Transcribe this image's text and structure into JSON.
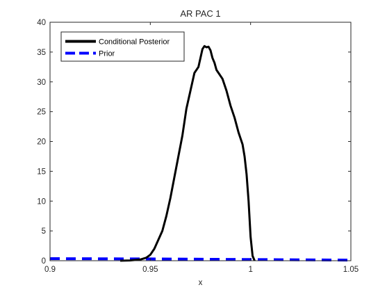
{
  "chart_data": {
    "type": "line",
    "title": "AR PAC 1",
    "xlabel": "x",
    "ylabel": "",
    "xlim": [
      0.9,
      1.05
    ],
    "ylim": [
      0,
      40
    ],
    "x_ticks": [
      0.9,
      0.95,
      1,
      1.05
    ],
    "x_tick_labels": [
      "0.9",
      "0.95",
      "1",
      "1.05"
    ],
    "y_ticks": [
      0,
      5,
      10,
      15,
      20,
      25,
      30,
      35,
      40
    ],
    "y_tick_labels": [
      "0",
      "5",
      "10",
      "15",
      "20",
      "25",
      "30",
      "35",
      "40"
    ],
    "grid": false,
    "legend_position": "top-left",
    "series": [
      {
        "name": "Conditional Posterior",
        "color": "#000000",
        "style": "solid",
        "x": [
          0.935,
          0.94,
          0.945,
          0.948,
          0.95,
          0.952,
          0.954,
          0.956,
          0.958,
          0.96,
          0.962,
          0.964,
          0.966,
          0.968,
          0.97,
          0.972,
          0.974,
          0.975,
          0.976,
          0.977,
          0.978,
          0.979,
          0.98,
          0.981,
          0.982,
          0.983,
          0.984,
          0.986,
          0.988,
          0.99,
          0.992,
          0.994,
          0.996,
          0.997,
          0.998,
          0.999,
          1.0,
          1.001,
          1.002
        ],
        "y": [
          0.0,
          0.05,
          0.2,
          0.5,
          1.0,
          2.0,
          3.5,
          5.0,
          7.5,
          10.5,
          14.0,
          17.5,
          21.0,
          25.5,
          28.5,
          31.5,
          32.5,
          34.0,
          35.5,
          36.0,
          35.8,
          35.9,
          35.3,
          34.0,
          33.2,
          32.0,
          31.5,
          30.5,
          28.5,
          26.0,
          24.0,
          21.5,
          19.5,
          17.5,
          14.5,
          10.0,
          4.0,
          0.8,
          0.0
        ]
      },
      {
        "name": "Prior",
        "color": "#0000ff",
        "style": "dashed",
        "x": [
          0.9,
          0.95,
          1.0,
          1.05
        ],
        "y": [
          0.35,
          0.3,
          0.2,
          0.1
        ]
      }
    ]
  }
}
